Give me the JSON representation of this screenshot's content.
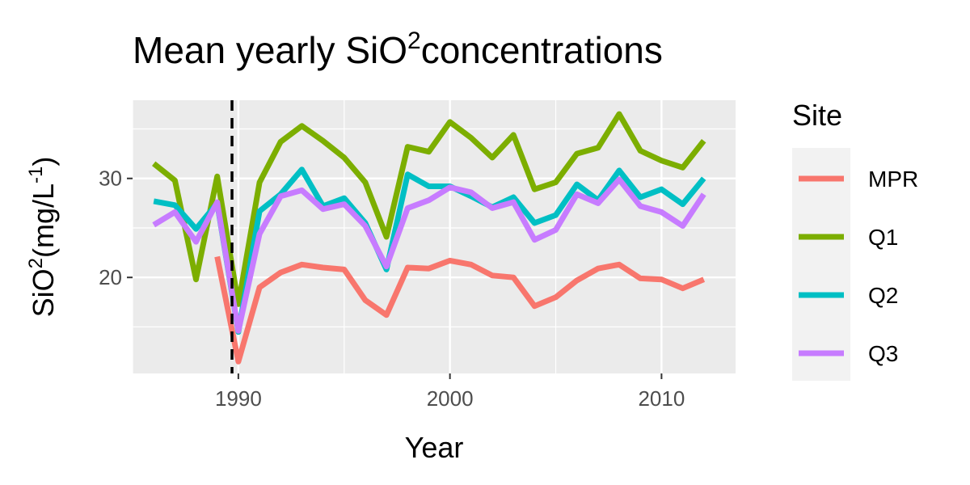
{
  "chart_data": {
    "type": "line",
    "title_parts": {
      "before": "Mean yearly SiO",
      "sup": "2",
      "after": "concentrations"
    },
    "xlabel": "Year",
    "ylabel_parts": {
      "a": "SiO",
      "sup1": "2",
      "b": "(mg/L",
      "sup2": "-1",
      "c": ")"
    },
    "xlim": [
      1985,
      2013.5
    ],
    "ylim": [
      10.3,
      37.9
    ],
    "x_ticks": [
      1990,
      2000,
      2010
    ],
    "x_tick_labels": [
      "1990",
      "2000",
      "2010"
    ],
    "x_minor_ticks": [
      1985,
      1995,
      2005
    ],
    "y_ticks": [
      20,
      30
    ],
    "y_tick_labels": [
      "20",
      "30"
    ],
    "y_minor_ticks": [
      15,
      25,
      35
    ],
    "vline": {
      "x": 1989.7,
      "style": "dashed",
      "color": "#000000"
    },
    "panel_background": "#ebebeb",
    "grid": true,
    "legend": {
      "title": "Site",
      "position": "right"
    },
    "series": [
      {
        "name": "MPR",
        "color": "#F8766D",
        "x": [
          1989,
          1990,
          1991,
          1992,
          1993,
          1994,
          1995,
          1996,
          1997,
          1998,
          1999,
          2000,
          2001,
          2002,
          2003,
          2004,
          2005,
          2006,
          2007,
          2008,
          2009,
          2010,
          2011,
          2012
        ],
        "values": [
          22.1,
          11.5,
          19.0,
          20.5,
          21.3,
          21.0,
          20.8,
          17.7,
          16.2,
          21.0,
          20.9,
          21.7,
          21.3,
          20.2,
          20.0,
          17.1,
          18.0,
          19.7,
          20.9,
          21.3,
          19.9,
          19.8,
          18.9,
          19.8
        ]
      },
      {
        "name": "Q1",
        "color": "#7CAE00",
        "x": [
          1986,
          1987,
          1988,
          1989,
          1990,
          1991,
          1992,
          1993,
          1994,
          1995,
          1996,
          1997,
          1998,
          1999,
          2000,
          2001,
          2002,
          2003,
          2004,
          2005,
          2006,
          2007,
          2008,
          2009,
          2010,
          2011,
          2012
        ],
        "values": [
          31.5,
          29.8,
          19.8,
          30.2,
          17.3,
          29.6,
          33.7,
          35.3,
          33.8,
          32.1,
          29.6,
          24.1,
          33.2,
          32.7,
          35.7,
          34.1,
          32.1,
          34.4,
          28.9,
          29.6,
          32.5,
          33.1,
          36.5,
          32.8,
          31.8,
          31.1,
          33.8
        ]
      },
      {
        "name": "Q2",
        "color": "#00BFC4",
        "x": [
          1986,
          1987,
          1988,
          1989,
          1990,
          1991,
          1992,
          1993,
          1994,
          1995,
          1996,
          1997,
          1998,
          1999,
          2000,
          2001,
          2002,
          2003,
          2004,
          2005,
          2006,
          2007,
          2008,
          2009,
          2010,
          2011,
          2012
        ],
        "values": [
          27.7,
          27.3,
          24.9,
          27.5,
          14.5,
          26.7,
          28.4,
          30.9,
          27.2,
          28.0,
          25.5,
          20.8,
          30.4,
          29.2,
          29.2,
          28.2,
          27.1,
          28.1,
          25.5,
          26.3,
          29.4,
          27.8,
          30.8,
          28.1,
          28.9,
          27.4,
          30.0
        ]
      },
      {
        "name": "Q3",
        "color": "#C77CFF",
        "x": [
          1986,
          1987,
          1988,
          1989,
          1990,
          1991,
          1992,
          1993,
          1994,
          1995,
          1996,
          1997,
          1998,
          1999,
          2000,
          2001,
          2002,
          2003,
          2004,
          2005,
          2006,
          2007,
          2008,
          2009,
          2010,
          2011,
          2012
        ],
        "values": [
          25.3,
          26.6,
          23.6,
          27.6,
          14.6,
          24.4,
          28.2,
          28.8,
          26.9,
          27.4,
          25.2,
          21.1,
          27.0,
          27.8,
          29.1,
          28.6,
          27.0,
          27.6,
          23.8,
          24.8,
          28.4,
          27.5,
          29.9,
          27.2,
          26.6,
          25.2,
          28.4
        ]
      }
    ]
  }
}
